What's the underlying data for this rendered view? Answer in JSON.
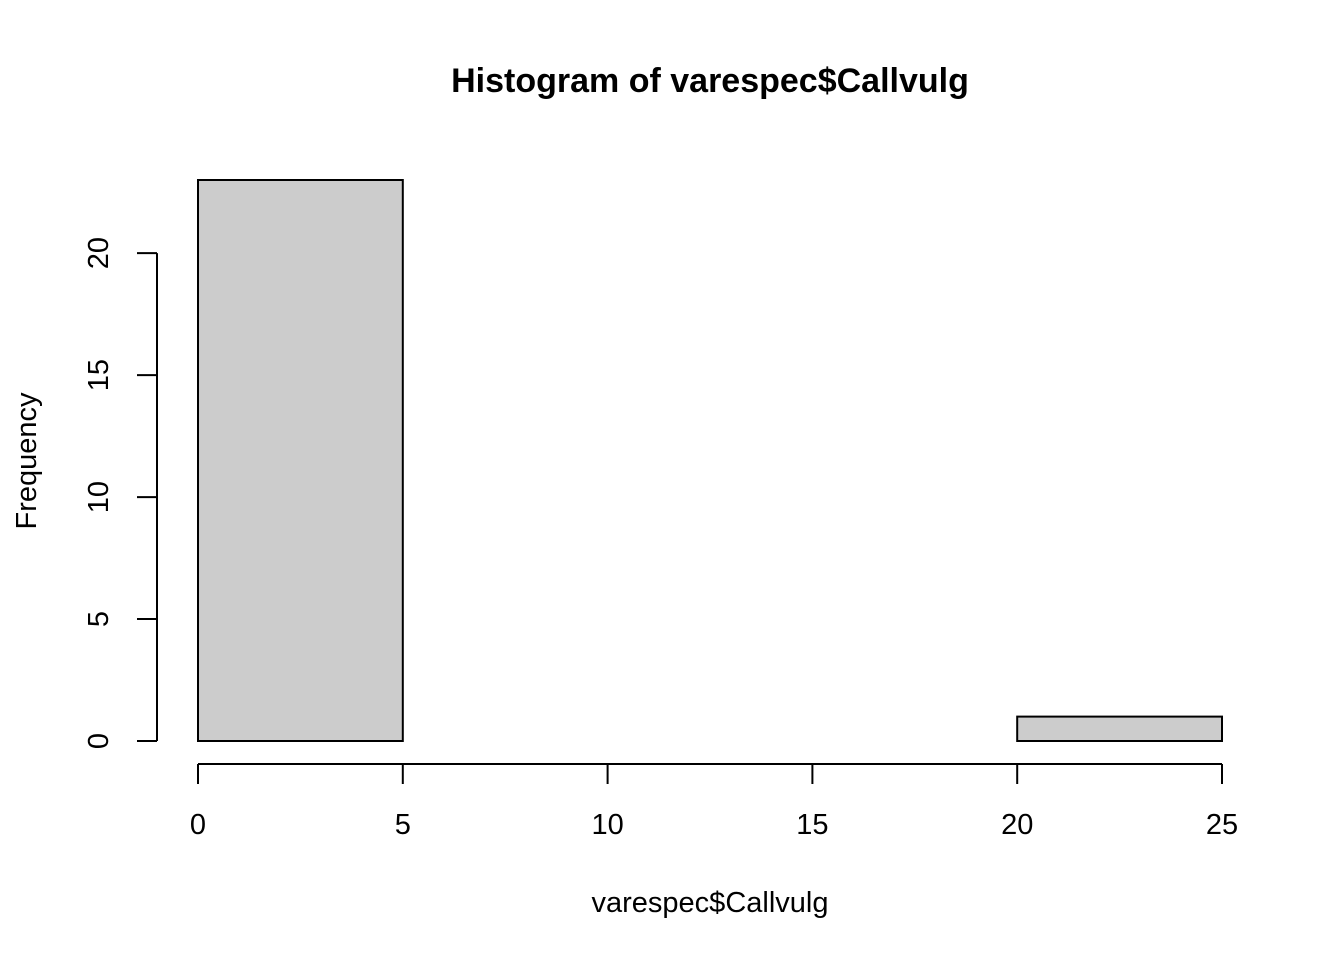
{
  "chart_data": {
    "type": "bar",
    "subtype": "histogram",
    "title": "Histogram of varespec$Callvulg",
    "xlabel": "varespec$Callvulg",
    "ylabel": "Frequency",
    "bins": [
      {
        "start": 0,
        "end": 5,
        "count": 23
      },
      {
        "start": 5,
        "end": 10,
        "count": 0
      },
      {
        "start": 10,
        "end": 15,
        "count": 0
      },
      {
        "start": 15,
        "end": 20,
        "count": 0
      },
      {
        "start": 20,
        "end": 25,
        "count": 1
      }
    ],
    "xlim": [
      0,
      25
    ],
    "ylim": [
      0,
      23
    ],
    "x_ticks": [
      0,
      5,
      10,
      15,
      20,
      25
    ],
    "y_ticks": [
      0,
      5,
      10,
      15,
      20
    ],
    "grid": false,
    "legend": "none",
    "bar_fill": "#cccccc",
    "bar_stroke": "#000000"
  }
}
